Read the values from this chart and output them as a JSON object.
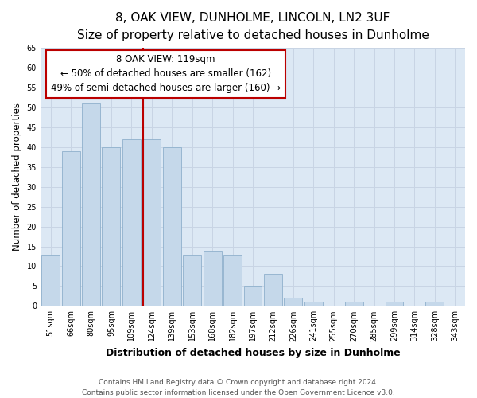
{
  "title": "8, OAK VIEW, DUNHOLME, LINCOLN, LN2 3UF",
  "subtitle": "Size of property relative to detached houses in Dunholme",
  "xlabel": "Distribution of detached houses by size in Dunholme",
  "ylabel": "Number of detached properties",
  "bar_labels": [
    "51sqm",
    "66sqm",
    "80sqm",
    "95sqm",
    "109sqm",
    "124sqm",
    "139sqm",
    "153sqm",
    "168sqm",
    "182sqm",
    "197sqm",
    "212sqm",
    "226sqm",
    "241sqm",
    "255sqm",
    "270sqm",
    "285sqm",
    "299sqm",
    "314sqm",
    "328sqm",
    "343sqm"
  ],
  "bar_values": [
    13,
    39,
    51,
    40,
    42,
    42,
    40,
    13,
    14,
    13,
    5,
    8,
    2,
    1,
    0,
    1,
    0,
    1,
    0,
    1,
    0
  ],
  "bar_color": "#c5d8ea",
  "bar_edge_color": "#8fb0cc",
  "grid_color": "#c8d4e4",
  "plot_bg_color": "#dce8f4",
  "figure_bg_color": "#ffffff",
  "annotation_box_edge": "#bb0000",
  "annotation_box_fill": "#ffffff",
  "vline_color": "#bb0000",
  "vline_x": 4.57,
  "annotation_title": "8 OAK VIEW: 119sqm",
  "annotation_line1": "← 50% of detached houses are smaller (162)",
  "annotation_line2": "49% of semi-detached houses are larger (160) →",
  "ylim": [
    0,
    65
  ],
  "yticks": [
    0,
    5,
    10,
    15,
    20,
    25,
    30,
    35,
    40,
    45,
    50,
    55,
    60,
    65
  ],
  "footer_line1": "Contains HM Land Registry data © Crown copyright and database right 2024.",
  "footer_line2": "Contains public sector information licensed under the Open Government Licence v3.0.",
  "title_fontsize": 11,
  "subtitle_fontsize": 9.5,
  "xlabel_fontsize": 9,
  "ylabel_fontsize": 8.5,
  "tick_fontsize": 7,
  "annotation_title_fontsize": 9,
  "annotation_body_fontsize": 8.5,
  "footer_fontsize": 6.5
}
